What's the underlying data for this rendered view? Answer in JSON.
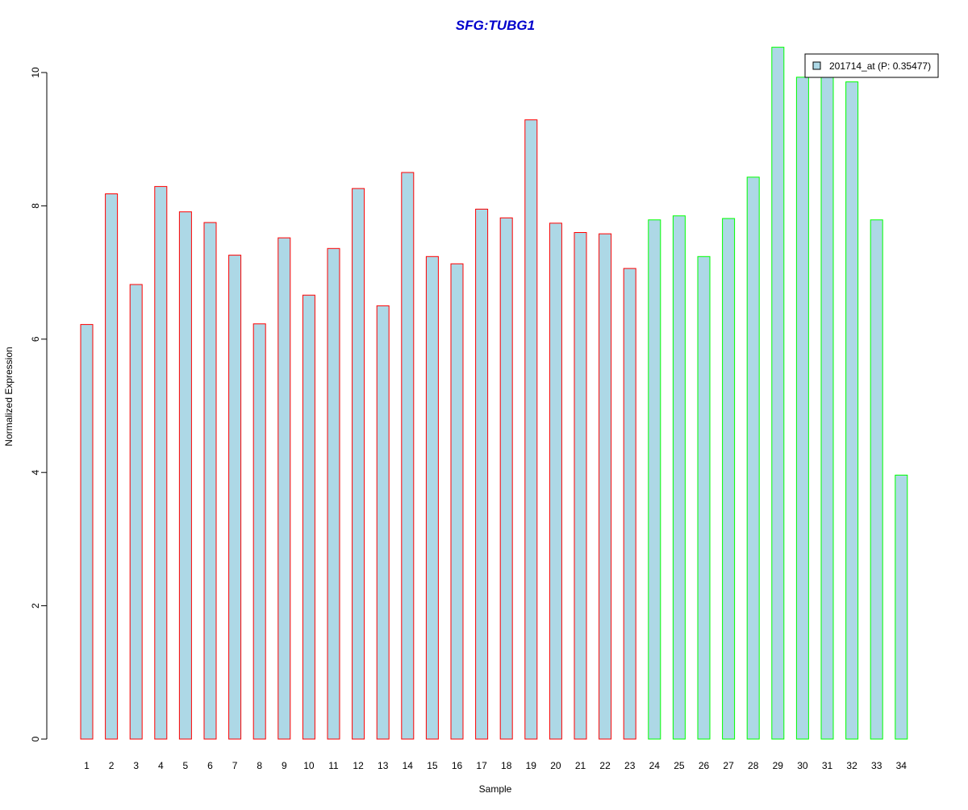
{
  "chart_data": {
    "type": "bar",
    "title": "SFG:TUBG1",
    "xlabel": "Sample",
    "ylabel": "Normalized Expression",
    "ylim": [
      0,
      10.4
    ],
    "yticks": [
      0,
      2,
      4,
      6,
      8,
      10
    ],
    "categories": [
      "1",
      "2",
      "3",
      "4",
      "5",
      "6",
      "7",
      "8",
      "9",
      "10",
      "11",
      "12",
      "13",
      "14",
      "15",
      "16",
      "17",
      "18",
      "19",
      "20",
      "21",
      "22",
      "23",
      "24",
      "25",
      "26",
      "27",
      "28",
      "29",
      "30",
      "31",
      "32",
      "33",
      "34"
    ],
    "series": [
      {
        "name": "201714_at (P: 0.35477)",
        "fill": "#add8e6",
        "values": [
          6.22,
          8.18,
          6.82,
          8.29,
          7.91,
          7.75,
          7.26,
          6.23,
          7.52,
          6.66,
          7.36,
          8.26,
          6.5,
          8.5,
          7.24,
          7.13,
          7.95,
          7.82,
          9.29,
          7.74,
          7.6,
          7.58,
          7.06,
          7.79,
          7.85,
          7.24,
          7.81,
          8.43,
          10.38,
          9.93,
          9.97,
          9.86,
          7.79,
          3.96
        ]
      }
    ],
    "groups": [
      {
        "samples": [
          1,
          23
        ],
        "border_color": "#ff0000"
      },
      {
        "samples": [
          24,
          34
        ],
        "border_color": "#00ff00"
      }
    ],
    "legend_position": "top-right",
    "grid": false
  },
  "colors": {
    "title": "#0000cc",
    "bar_fill": "#add8e6",
    "group1_border": "#ff0000",
    "group2_border": "#00ff00"
  }
}
